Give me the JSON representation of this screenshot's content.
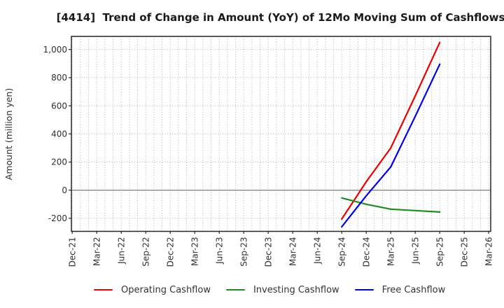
{
  "figure": {
    "title": "[4414]  Trend of Change in Amount (YoY) of 12Mo Moving Sum of Cashflows",
    "y_axis_label": "Amount (million yen)"
  },
  "chart_data": {
    "type": "line",
    "title": "[4414]  Trend of Change in Amount (YoY) of 12Mo Moving Sum of Cashflows",
    "xlabel": "",
    "ylabel": "Amount (million yen)",
    "categories": [
      "Dec-21",
      "Mar-22",
      "Jun-22",
      "Sep-22",
      "Dec-22",
      "Mar-23",
      "Jun-23",
      "Sep-23",
      "Dec-23",
      "Mar-24",
      "Jun-24",
      "Sep-24",
      "Dec-24",
      "Mar-25",
      "Jun-25",
      "Sep-25",
      "Dec-25",
      "Mar-26"
    ],
    "y_ticks": [
      {
        "value": -200,
        "label": "-200"
      },
      {
        "value": 0,
        "label": "0"
      },
      {
        "value": 200,
        "label": "200"
      },
      {
        "value": 400,
        "label": "400"
      },
      {
        "value": 600,
        "label": "600"
      },
      {
        "value": 800,
        "label": "800"
      },
      {
        "value": 1000,
        "label": "1,000"
      }
    ],
    "ylim": [
      -295,
      1095
    ],
    "grid": {
      "vertical": "monthly dotted",
      "horizontal": "every 200 dotted",
      "zero_line": "solid gray"
    },
    "legend_position": "bottom",
    "series": [
      {
        "name": "Operating Cashflow",
        "color": "#ee0000",
        "start_index": 11,
        "x": [
          "Sep-24",
          "Dec-24",
          "Mar-25",
          "Jun-25",
          "Sep-25"
        ],
        "values": [
          -205,
          60,
          300,
          670,
          1050
        ]
      },
      {
        "name": "Investing Cashflow",
        "color": "#1e8c1e",
        "start_index": 11,
        "x": [
          "Sep-24",
          "Dec-24",
          "Mar-25",
          "Jun-25",
          "Sep-25"
        ],
        "values": [
          -55,
          -100,
          -135,
          -145,
          -155
        ]
      },
      {
        "name": "Free Cashflow",
        "color": "#0000ee",
        "start_index": 11,
        "x": [
          "Sep-24",
          "Dec-24",
          "Mar-25",
          "Jun-25",
          "Sep-25"
        ],
        "values": [
          -260,
          -40,
          165,
          525,
          895
        ]
      }
    ]
  },
  "legend": {
    "items": [
      {
        "label": "Operating Cashflow",
        "color": "#ee0000"
      },
      {
        "label": "Investing Cashflow",
        "color": "#1e8c1e"
      },
      {
        "label": "Free Cashflow",
        "color": "#0000ee"
      }
    ]
  },
  "colors": {
    "background": "#ffffff",
    "grid": "#adadad",
    "zero_line": "#888888",
    "spine": "#262626",
    "tick_text": "#303030"
  }
}
